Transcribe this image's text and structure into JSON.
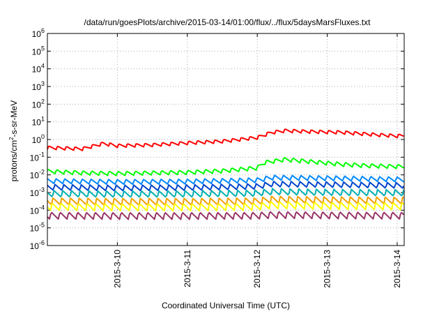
{
  "chart_data": {
    "type": "line",
    "title": "/data/run/goesPlots/archive/2015-03-14/01:00/flux/../flux/5daysMarsFluxes.txt",
    "xlabel": "Coordinated Universal Time (UTC)",
    "ylabel_prefix": "protons/cm",
    "ylabel_sup": "2",
    "ylabel_suffix": "-s-sr-MeV",
    "y_scale": "log",
    "ylim": [
      1e-06,
      1000000.0
    ],
    "xlim_days": [
      0,
      5.1
    ],
    "x_ticks": [
      {
        "day": 1,
        "label": "2015-3-10"
      },
      {
        "day": 2,
        "label": "2015-3-11"
      },
      {
        "day": 3,
        "label": "2015-3-12"
      },
      {
        "day": 4,
        "label": "2015-3-13"
      },
      {
        "day": 5,
        "label": "2015-3-14"
      }
    ],
    "y_ticks": [
      {
        "exp": "6"
      },
      {
        "exp": "5"
      },
      {
        "exp": "4"
      },
      {
        "exp": "3"
      },
      {
        "exp": "2"
      },
      {
        "exp": "1"
      },
      {
        "exp": "0"
      },
      {
        "exp": "-1"
      },
      {
        "exp": "-2"
      },
      {
        "exp": "-3"
      },
      {
        "exp": "-4"
      },
      {
        "exp": "-5"
      },
      {
        "exp": "-6"
      }
    ],
    "grid": true,
    "series": [
      {
        "color": "#ff0000",
        "x": [
          0,
          0.5,
          0.8,
          1.0,
          1.5,
          2.0,
          2.5,
          3.0,
          3.2,
          3.4,
          3.8,
          4.2,
          4.6,
          5.0,
          5.1
        ],
        "y": [
          0.35,
          0.3,
          0.6,
          0.45,
          0.5,
          0.65,
          0.8,
          1.3,
          2.5,
          3.2,
          2.8,
          2.6,
          2.0,
          1.6,
          1.7
        ],
        "amp": 1.6
      },
      {
        "color": "#00ff00",
        "x": [
          0,
          0.5,
          1.0,
          1.5,
          2.0,
          2.5,
          3.0,
          3.1,
          3.4,
          3.8,
          4.2,
          4.6,
          5.0,
          5.1
        ],
        "y": [
          0.016,
          0.013,
          0.012,
          0.013,
          0.014,
          0.017,
          0.025,
          0.05,
          0.075,
          0.055,
          0.04,
          0.033,
          0.03,
          0.03
        ],
        "amp": 1.8
      },
      {
        "color": "#0088ff",
        "x": [
          0,
          1.0,
          2.0,
          3.0,
          3.2,
          4.0,
          5.1
        ],
        "y": [
          0.0045,
          0.004,
          0.0042,
          0.005,
          0.007,
          0.0065,
          0.0055
        ],
        "amp": 2.0
      },
      {
        "color": "#0044cc",
        "x": [
          0,
          1.0,
          2.0,
          3.0,
          3.2,
          4.0,
          5.1
        ],
        "y": [
          0.002,
          0.0018,
          0.0019,
          0.0022,
          0.003,
          0.0028,
          0.0025
        ],
        "amp": 2.2
      },
      {
        "color": "#00b0b0",
        "x": [
          0,
          1.0,
          2.0,
          3.0,
          3.2,
          4.0,
          5.1
        ],
        "y": [
          0.00085,
          0.0008,
          0.00082,
          0.0009,
          0.0011,
          0.001,
          0.00095
        ],
        "amp": 2.4
      },
      {
        "color": "#f0a000",
        "x": [
          0,
          1.0,
          2.0,
          3.0,
          3.2,
          4.0,
          5.1
        ],
        "y": [
          0.00032,
          0.0003,
          0.0003,
          0.00032,
          0.0004,
          0.00037,
          0.00035
        ],
        "amp": 2.5
      },
      {
        "color": "#ffff00",
        "x": [
          0,
          1.0,
          2.0,
          3.0,
          3.2,
          4.0,
          5.1
        ],
        "y": [
          0.00016,
          0.00015,
          0.00015,
          0.00016,
          0.0002,
          0.00018,
          0.00017
        ],
        "amp": 2.6
      },
      {
        "color": "#993366",
        "x": [
          0,
          1.0,
          2.0,
          3.0,
          3.2,
          4.0,
          5.1
        ],
        "y": [
          5e-05,
          4.8e-05,
          4.8e-05,
          5e-05,
          5.5e-05,
          5.2e-05,
          5e-05
        ],
        "amp": 2.6
      }
    ],
    "sawtooth_period_days": 0.125
  }
}
